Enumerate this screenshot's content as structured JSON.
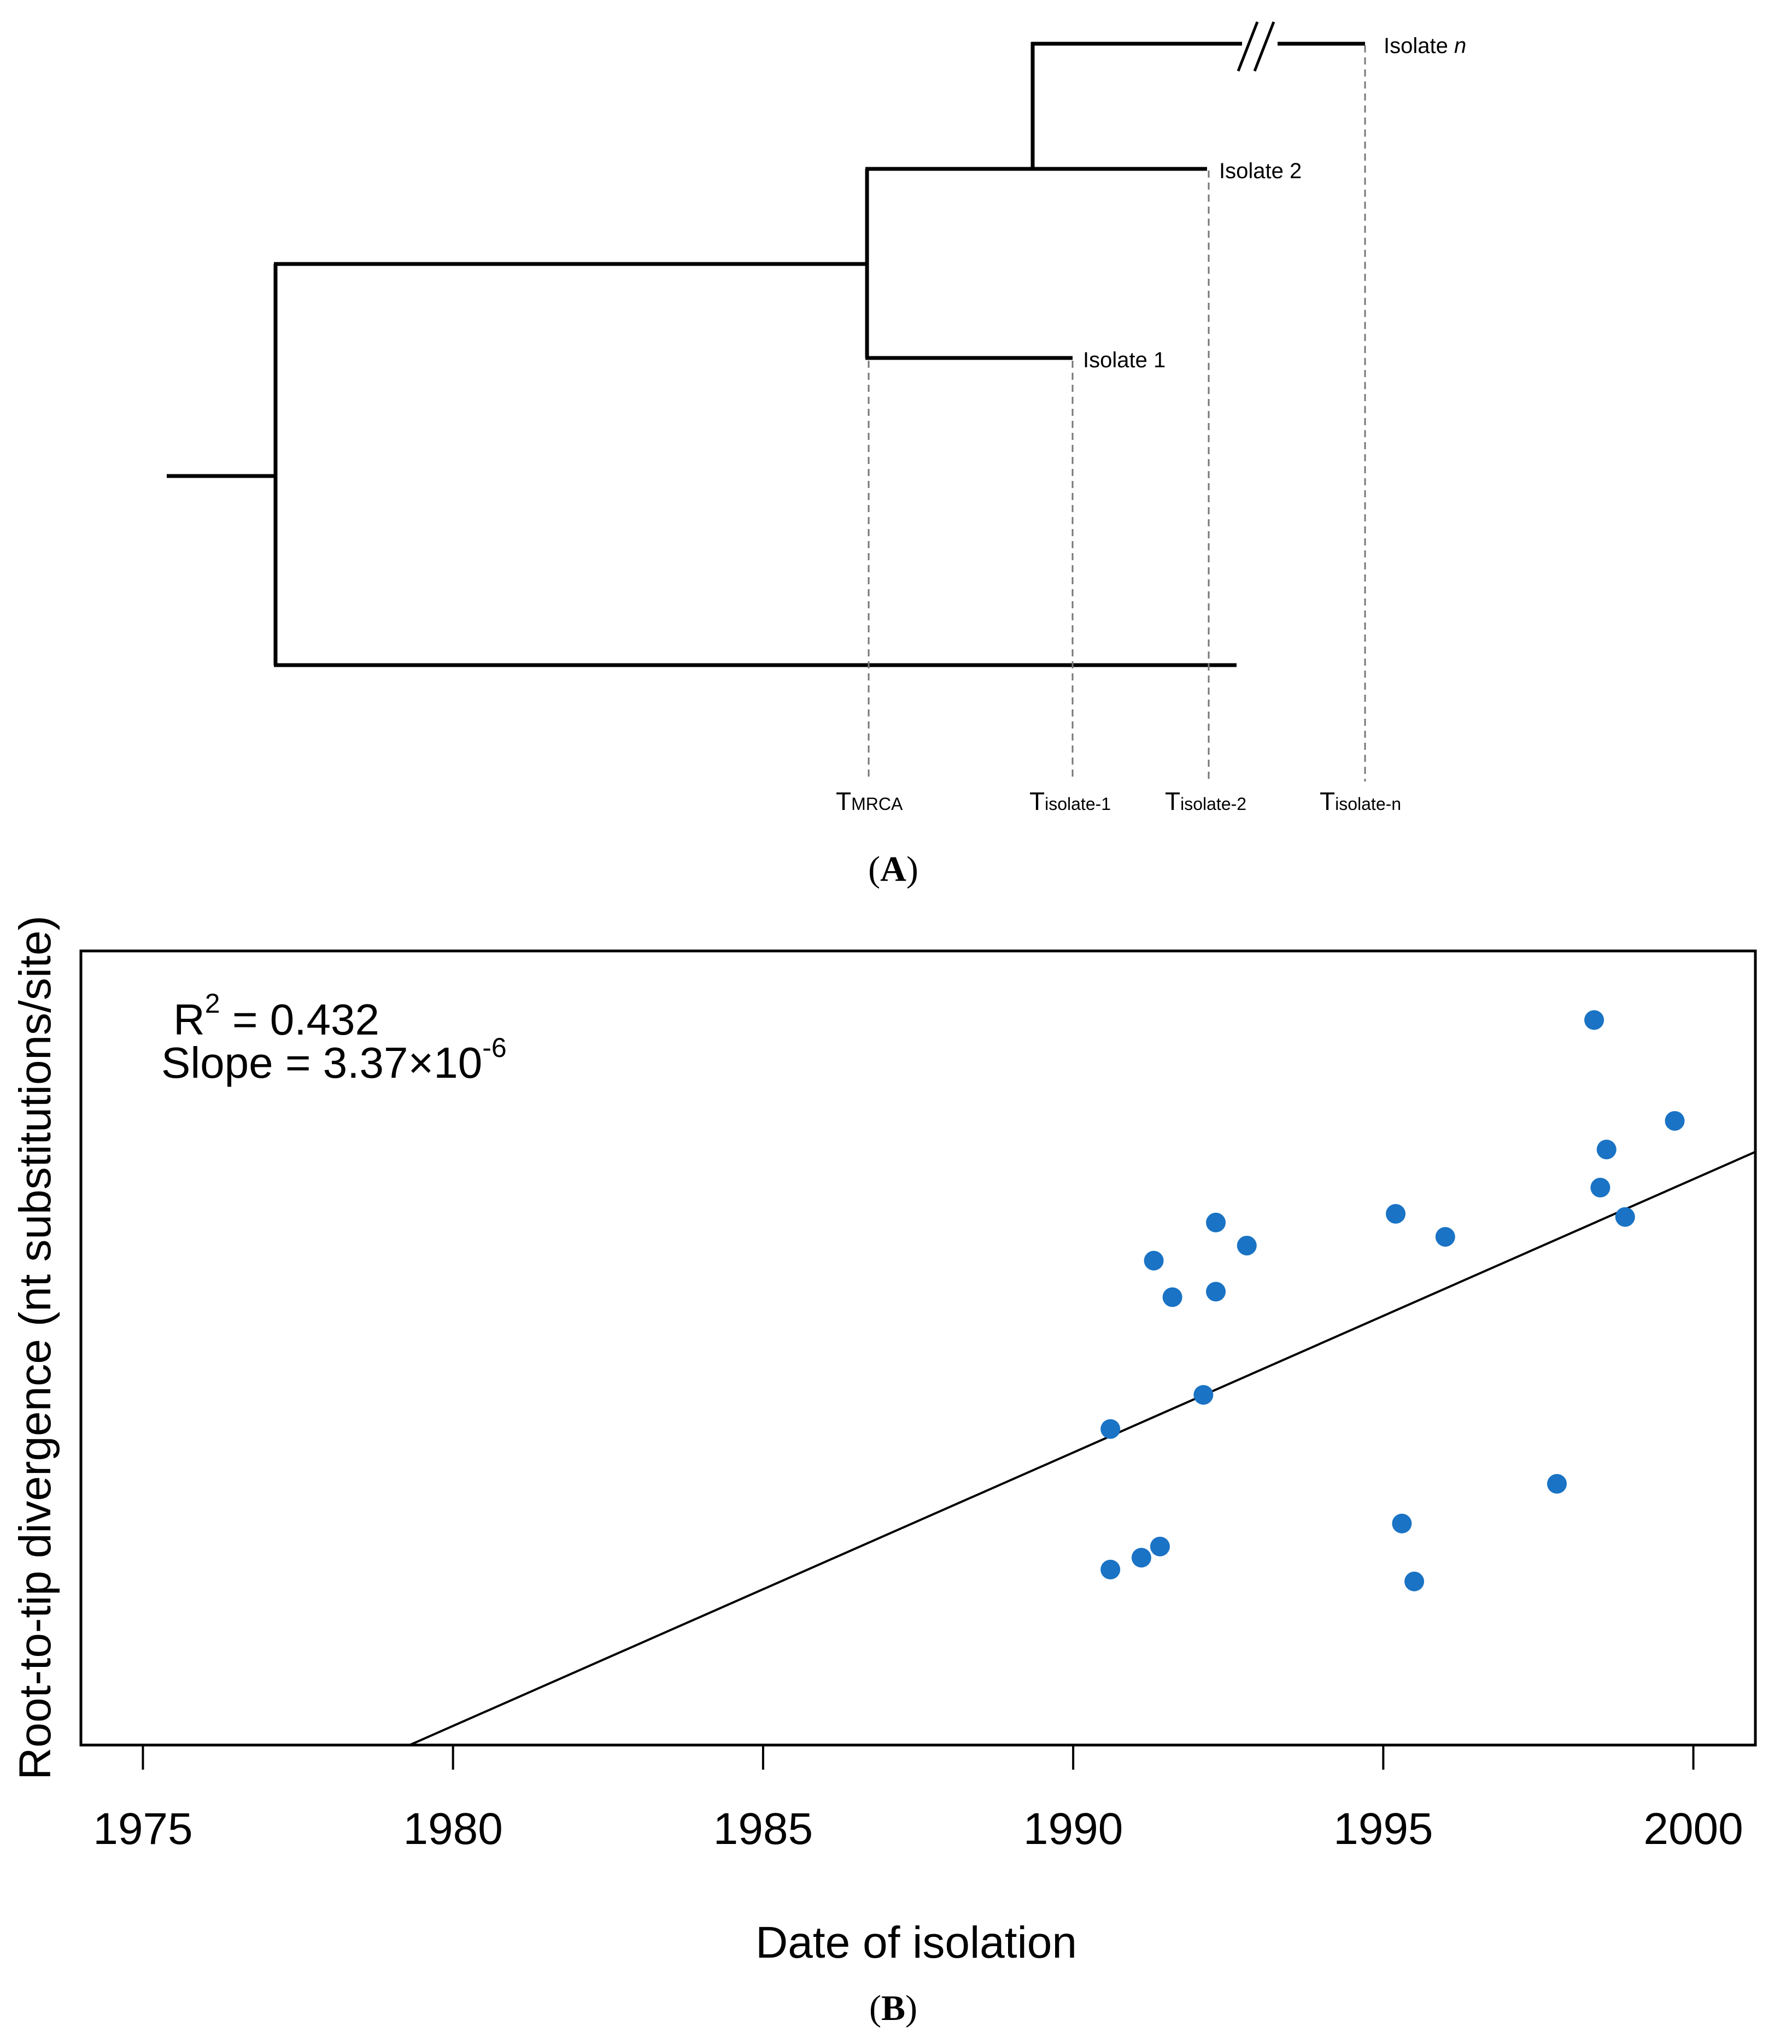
{
  "panel_a": {
    "label_letter": "A",
    "tips": [
      {
        "name": "Isolate ",
        "italic_suffix": "n"
      },
      {
        "name": "Isolate 2",
        "italic_suffix": ""
      },
      {
        "name": "Isolate 1",
        "italic_suffix": ""
      }
    ],
    "time_markers": [
      {
        "main": "T",
        "sub": "MRCA"
      },
      {
        "main": "T",
        "sub": "isolate-1"
      },
      {
        "main": "T",
        "sub": "isolate-2"
      },
      {
        "main": "T",
        "sub": "isolate-n"
      }
    ]
  },
  "panel_b": {
    "label_letter": "B",
    "r2_prefix": "R",
    "r2_sup": "2",
    "r2_value": " = 0.432",
    "slope_prefix": "Slope = 3.37",
    "slope_times": "×",
    "slope_base": "10",
    "slope_exp": "-6"
  },
  "chart_data": {
    "type": "scatter",
    "title": "",
    "xlabel": "Date of isolation",
    "ylabel": "Root-to-tip divergence (nt substitutions/site)",
    "xlim": [
      1974,
      2001
    ],
    "ylim": [
      0,
      1
    ],
    "xticks": [
      1975,
      1980,
      1985,
      1990,
      1995,
      2000
    ],
    "yticks_shown": false,
    "point_color": "#1a73c4",
    "series": [
      {
        "points": [
          {
            "x": 1998.4,
            "y": 0.913
          },
          {
            "x": 1999.7,
            "y": 0.786
          },
          {
            "x": 1998.6,
            "y": 0.75
          },
          {
            "x": 1998.5,
            "y": 0.702
          },
          {
            "x": 1998.9,
            "y": 0.665
          },
          {
            "x": 1995.2,
            "y": 0.669
          },
          {
            "x": 1996.0,
            "y": 0.64
          },
          {
            "x": 1992.3,
            "y": 0.658
          },
          {
            "x": 1992.8,
            "y": 0.629
          },
          {
            "x": 1991.3,
            "y": 0.61
          },
          {
            "x": 1991.6,
            "y": 0.564
          },
          {
            "x": 1992.3,
            "y": 0.571
          },
          {
            "x": 1992.1,
            "y": 0.441
          },
          {
            "x": 1990.6,
            "y": 0.398
          },
          {
            "x": 1997.8,
            "y": 0.329
          },
          {
            "x": 1995.3,
            "y": 0.279
          },
          {
            "x": 1991.4,
            "y": 0.25
          },
          {
            "x": 1991.1,
            "y": 0.236
          },
          {
            "x": 1990.6,
            "y": 0.221
          },
          {
            "x": 1995.5,
            "y": 0.206
          }
        ]
      }
    ],
    "regression_line": {
      "x1": 1979.3,
      "y1": 0.0,
      "x2": 2001.0,
      "y2": 0.747
    }
  }
}
